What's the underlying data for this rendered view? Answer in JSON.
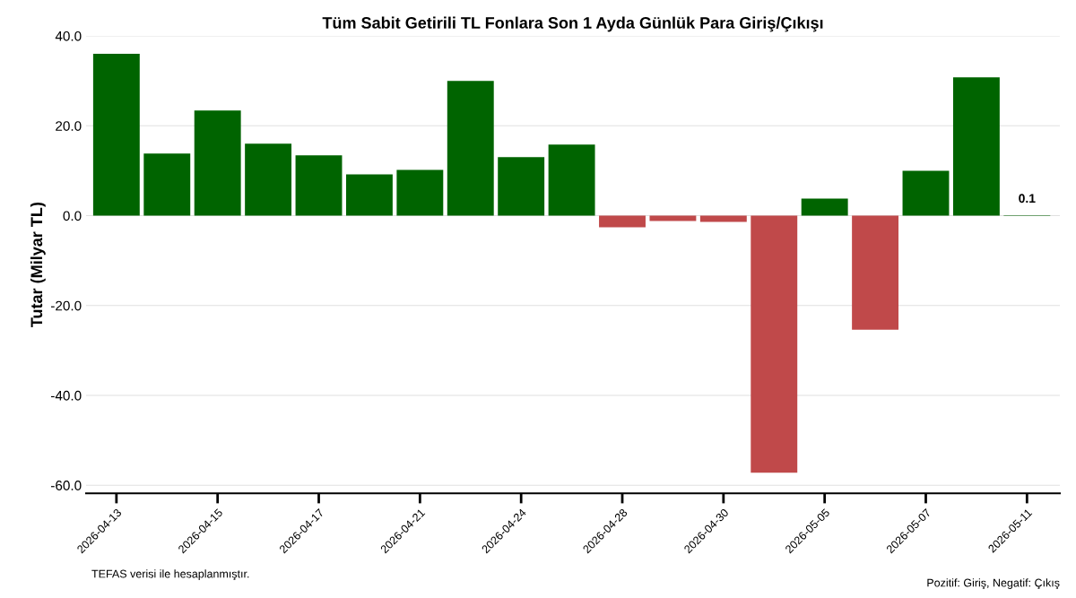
{
  "chart_data": {
    "type": "bar",
    "title": "Tüm Sabit Getirili TL Fonlara Son 1 Ayda Günlük Para Giriş/Çıkışı",
    "ylabel": "Tutar (Milyar TL)",
    "categories": [
      "2026-04-13",
      null,
      "2026-04-15",
      null,
      "2026-04-17",
      null,
      "2026-04-21",
      null,
      "2026-04-24",
      null,
      "2026-04-28",
      null,
      "2026-04-30",
      null,
      "2026-05-05",
      null,
      "2026-05-07",
      null,
      "2026-05-11"
    ],
    "values": [
      36.0,
      13.8,
      23.4,
      16.0,
      13.4,
      9.2,
      10.2,
      30.0,
      13.0,
      15.8,
      -2.6,
      -1.2,
      -1.4,
      -57.2,
      3.8,
      -25.4,
      10.0,
      30.8,
      0.1
    ],
    "colors": [
      "#006400",
      "#006400",
      "#006400",
      "#006400",
      "#006400",
      "#006400",
      "#006400",
      "#006400",
      "#006400",
      "#006400",
      "#c0494a",
      "#c0494a",
      "#c0494a",
      "#c0494a",
      "#006400",
      "#c0494a",
      "#006400",
      "#006400",
      "#006400"
    ],
    "value_labels": [
      null,
      null,
      null,
      null,
      null,
      null,
      null,
      null,
      null,
      null,
      null,
      null,
      null,
      null,
      null,
      null,
      null,
      null,
      "0.1"
    ],
    "ylim": [
      -61.8,
      40
    ],
    "yticks": [
      {
        "value": -60,
        "label": "-60.0"
      },
      {
        "value": -40,
        "label": "-40.0"
      },
      {
        "value": -20,
        "label": "-20.0"
      },
      {
        "value": 0,
        "label": "0.0"
      },
      {
        "value": 20,
        "label": "20.0"
      },
      {
        "value": 40,
        "label": "40.0"
      }
    ],
    "grid": "y",
    "legend": false,
    "annotations": [
      "TEFAS verisi ile hesaplanmıştır.",
      "Pozitif: Giriş, Negatif: Çıkış"
    ]
  }
}
